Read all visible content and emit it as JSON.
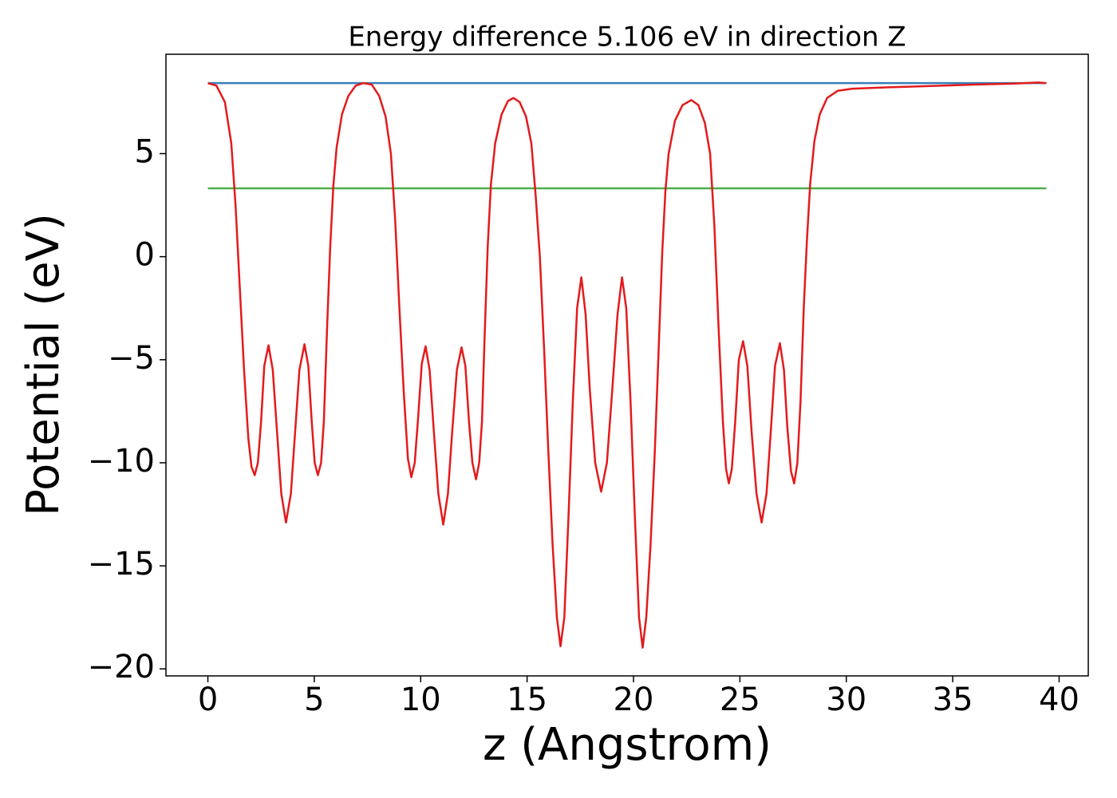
{
  "chart_data": {
    "type": "line",
    "title": "Energy difference 5.106 eV in direction Z",
    "x_label": "z (Angstrom)",
    "y_label": "Potential (eV)",
    "xlim": [
      -1.97,
      41.37
    ],
    "ylim": [
      -20.34,
      9.82
    ],
    "xticks": [
      0,
      5,
      10,
      15,
      20,
      25,
      30,
      35,
      40
    ],
    "yticks": [
      {
        "value": -20,
        "label": "−20"
      },
      {
        "value": -15,
        "label": "−15"
      },
      {
        "value": -10,
        "label": "−10"
      },
      {
        "value": -5,
        "label": "−5"
      },
      0,
      5
    ],
    "grid": false,
    "series": [
      {
        "color": "#377eb8",
        "x": [
          0,
          39.4
        ],
        "values": [
          8.42,
          8.42
        ]
      },
      {
        "color": "#4daf4a",
        "x": [
          0,
          39.4
        ],
        "values": [
          3.314,
          3.314
        ]
      },
      {
        "color": "#e41a1c",
        "x": [
          0,
          0.4,
          0.8,
          1.1,
          1.3,
          1.5,
          1.7,
          1.9,
          2.05,
          2.2,
          2.35,
          2.5,
          2.65,
          2.85,
          3.05,
          3.25,
          3.45,
          3.67,
          3.9,
          4.1,
          4.3,
          4.54,
          4.72,
          4.88,
          5.02,
          5.17,
          5.32,
          5.45,
          5.6,
          5.75,
          5.9,
          6.05,
          6.3,
          6.6,
          6.95,
          7.3,
          7.7,
          8.05,
          8.35,
          8.6,
          8.8,
          9.0,
          9.2,
          9.4,
          9.56,
          9.72,
          9.88,
          10.05,
          10.23,
          10.42,
          10.62,
          10.83,
          11.06,
          11.28,
          11.48,
          11.7,
          11.92,
          12.1,
          12.27,
          12.43,
          12.6,
          12.75,
          12.88,
          13.0,
          13.15,
          13.3,
          13.5,
          13.8,
          14.1,
          14.36,
          14.65,
          14.95,
          15.2,
          15.4,
          15.6,
          15.8,
          16.0,
          16.2,
          16.4,
          16.57,
          16.75,
          16.95,
          17.15,
          17.35,
          17.55,
          17.75,
          17.95,
          18.2,
          18.48,
          18.75,
          19.0,
          19.25,
          19.46,
          19.66,
          19.86,
          20.06,
          20.26,
          20.43,
          20.6,
          20.8,
          21.0,
          21.2,
          21.35,
          21.5,
          21.65,
          21.95,
          22.3,
          22.72,
          23.05,
          23.35,
          23.6,
          23.8,
          24.0,
          24.2,
          24.35,
          24.48,
          24.62,
          24.78,
          24.95,
          25.15,
          25.35,
          25.55,
          25.78,
          26.02,
          26.25,
          26.45,
          26.65,
          26.88,
          27.07,
          27.23,
          27.4,
          27.55,
          27.7,
          27.85,
          28.0,
          28.15,
          28.3,
          28.5,
          28.75,
          29.1,
          29.6,
          30.3,
          32,
          34,
          36,
          38,
          39,
          39.4
        ],
        "values": [
          8.42,
          8.3,
          7.5,
          5.5,
          2.5,
          -1.5,
          -5.5,
          -8.8,
          -10.2,
          -10.6,
          -10.0,
          -8.0,
          -5.3,
          -4.3,
          -5.5,
          -8.5,
          -11.5,
          -12.9,
          -11.5,
          -8.5,
          -5.5,
          -4.25,
          -5.3,
          -8.0,
          -10.0,
          -10.6,
          -10.0,
          -8.0,
          -3.5,
          0.5,
          3.5,
          5.3,
          6.9,
          7.8,
          8.3,
          8.42,
          8.35,
          7.8,
          6.8,
          5.0,
          1.8,
          -2.5,
          -6.5,
          -9.8,
          -10.7,
          -10.0,
          -7.8,
          -5.2,
          -4.35,
          -5.5,
          -8.5,
          -11.5,
          -13.0,
          -11.5,
          -8.5,
          -5.5,
          -4.4,
          -5.3,
          -8.0,
          -10.0,
          -10.8,
          -10.0,
          -8.0,
          -4.0,
          0.5,
          3.5,
          5.5,
          6.9,
          7.55,
          7.7,
          7.5,
          6.8,
          5.5,
          3.0,
          0,
          -4.5,
          -9.5,
          -14.0,
          -17.5,
          -18.9,
          -17.5,
          -12.5,
          -7.0,
          -2.5,
          -1.0,
          -2.8,
          -6.5,
          -10.0,
          -11.4,
          -10.0,
          -6.5,
          -2.8,
          -1.0,
          -2.5,
          -7.0,
          -12.5,
          -17.5,
          -18.97,
          -17.5,
          -14.0,
          -9.5,
          -4.0,
          0.2,
          3.2,
          5.0,
          6.6,
          7.35,
          7.6,
          7.35,
          6.5,
          5.0,
          1.5,
          -3.5,
          -8.0,
          -10.3,
          -11.0,
          -10.3,
          -8.0,
          -5.0,
          -4.1,
          -5.3,
          -8.5,
          -11.5,
          -12.9,
          -11.5,
          -8.5,
          -5.3,
          -4.2,
          -5.5,
          -8.3,
          -10.4,
          -11.0,
          -10.0,
          -7.0,
          -2.5,
          0.8,
          3.5,
          5.6,
          6.9,
          7.7,
          8.05,
          8.15,
          8.22,
          8.28,
          8.35,
          8.4,
          8.45,
          8.42
        ]
      }
    ]
  }
}
